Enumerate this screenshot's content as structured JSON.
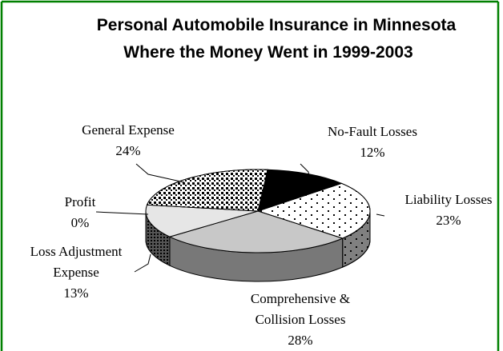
{
  "chart_data": {
    "type": "pie",
    "title": "Personal Automobile Insurance in Minnesota",
    "subtitle": "Where the Money Went in 1999-2003",
    "categories": [
      "No-Fault Losses",
      "Liability Losses",
      "Comprehensive & Collision Losses",
      "Loss Adjustment Expense",
      "Profit",
      "General Expense"
    ],
    "values": [
      12,
      23,
      28,
      13,
      0,
      24
    ],
    "value_labels": [
      "12%",
      "23%",
      "28%",
      "13%",
      "0%",
      "24%"
    ],
    "colors": [
      "#000000",
      "#ffffff",
      "#c8c8c8",
      "#e6e6e6",
      "#f0f0f0",
      "#ffffff"
    ]
  }
}
